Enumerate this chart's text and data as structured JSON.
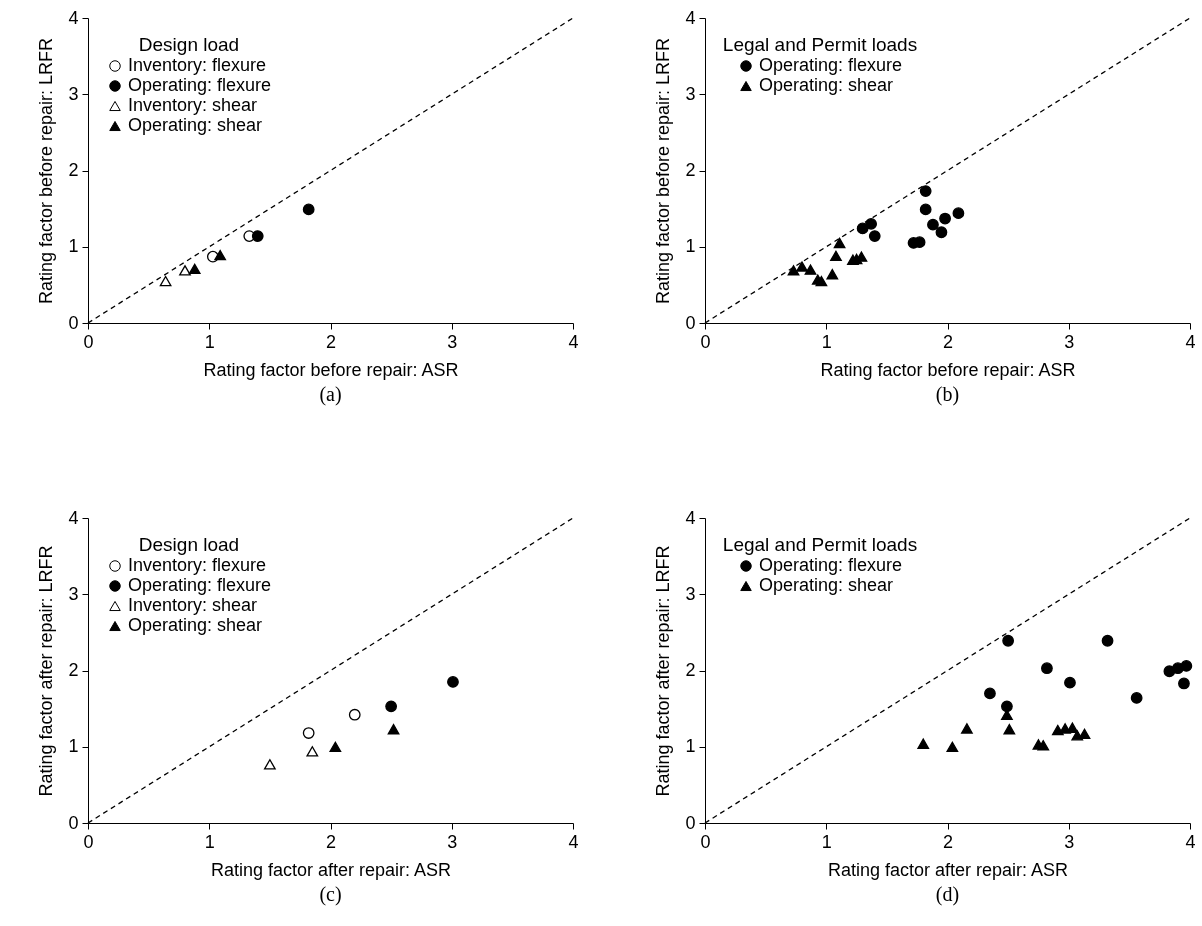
{
  "chart_data": [
    {
      "type": "scatter",
      "xlabel": "Rating factor before repair: ASR",
      "ylabel": "Rating factor before repair: LRFR",
      "legend_title": "Design load",
      "legend": "top left",
      "grid": false,
      "xlim": [
        0,
        4
      ],
      "ylim": [
        0,
        4
      ],
      "xticks": [
        0,
        1,
        2,
        3,
        4
      ],
      "yticks": [
        0,
        1,
        2,
        3,
        4
      ],
      "annotations": [
        "(a)"
      ],
      "series": [
        {
          "type": "line",
          "color": "#000000",
          "line_style": "dashed",
          "marker": "none",
          "x": [
            0,
            4
          ],
          "values": [
            0,
            4
          ]
        },
        {
          "name": "Inventory: flexure",
          "marker": "circle",
          "color": "#ffffff",
          "x": [
            1.03,
            1.33
          ],
          "values": [
            0.87,
            1.14
          ]
        },
        {
          "name": "Operating: flexure",
          "marker": "circle",
          "color": "#000000",
          "x": [
            1.4,
            1.82
          ],
          "values": [
            1.14,
            1.49
          ]
        },
        {
          "name": "Inventory: shear",
          "marker": "triangle",
          "color": "#ffffff",
          "x": [
            0.64,
            0.8
          ],
          "values": [
            0.55,
            0.69
          ]
        },
        {
          "name": "Operating: shear",
          "marker": "triangle",
          "color": "#000000",
          "x": [
            0.88,
            1.09
          ],
          "values": [
            0.71,
            0.89
          ]
        }
      ]
    },
    {
      "type": "scatter",
      "xlabel": "Rating factor before repair: ASR",
      "ylabel": "Rating factor before repair: LRFR",
      "legend_title": "Legal and Permit loads",
      "legend": "top left",
      "grid": false,
      "xlim": [
        0,
        4
      ],
      "ylim": [
        0,
        4
      ],
      "xticks": [
        0,
        1,
        2,
        3,
        4
      ],
      "yticks": [
        0,
        1,
        2,
        3,
        4
      ],
      "annotations": [
        "(b)"
      ],
      "series": [
        {
          "type": "line",
          "color": "#000000",
          "line_style": "dashed",
          "marker": "none",
          "x": [
            0,
            4
          ],
          "values": [
            0,
            4
          ]
        },
        {
          "name": "Operating: flexure",
          "marker": "circle",
          "color": "#000000",
          "x": [
            1.3,
            1.37,
            1.4,
            1.72,
            1.77,
            1.82,
            1.82,
            1.88,
            1.95,
            1.98,
            2.09
          ],
          "values": [
            1.24,
            1.3,
            1.14,
            1.05,
            1.06,
            1.73,
            1.49,
            1.29,
            1.19,
            1.37,
            1.44
          ]
        },
        {
          "name": "Operating: shear",
          "marker": "triangle",
          "color": "#000000",
          "x": [
            0.73,
            0.8,
            0.87,
            0.93,
            0.96,
            1.05,
            1.08,
            1.11,
            1.22,
            1.25,
            1.29
          ],
          "values": [
            0.69,
            0.74,
            0.7,
            0.57,
            0.55,
            0.64,
            0.88,
            1.05,
            0.83,
            0.84,
            0.87
          ]
        }
      ]
    },
    {
      "type": "scatter",
      "xlabel": "Rating factor after repair: ASR",
      "ylabel": "Rating factor after repair: LRFR",
      "legend_title": "Design load",
      "legend": "top left",
      "grid": false,
      "xlim": [
        0,
        4
      ],
      "ylim": [
        0,
        4
      ],
      "xticks": [
        0,
        1,
        2,
        3,
        4
      ],
      "yticks": [
        0,
        1,
        2,
        3,
        4
      ],
      "annotations": [
        "(c)"
      ],
      "series": [
        {
          "type": "line",
          "color": "#000000",
          "line_style": "dashed",
          "marker": "none",
          "x": [
            0,
            4
          ],
          "values": [
            0,
            4
          ]
        },
        {
          "name": "Inventory: flexure",
          "marker": "circle",
          "color": "#ffffff",
          "x": [
            1.82,
            2.2
          ],
          "values": [
            1.18,
            1.42
          ]
        },
        {
          "name": "Operating: flexure",
          "marker": "circle",
          "color": "#000000",
          "x": [
            2.5,
            3.01
          ],
          "values": [
            1.53,
            1.85
          ]
        },
        {
          "name": "Inventory: shear",
          "marker": "triangle",
          "color": "#ffffff",
          "x": [
            1.5,
            1.85
          ],
          "values": [
            0.77,
            0.94
          ]
        },
        {
          "name": "Operating: shear",
          "marker": "triangle",
          "color": "#000000",
          "x": [
            2.04,
            2.52
          ],
          "values": [
            1.0,
            1.23
          ]
        }
      ]
    },
    {
      "type": "scatter",
      "xlabel": "Rating factor after repair: ASR",
      "ylabel": "Rating factor after repair: LRFR",
      "legend_title": "Legal and Permit loads",
      "legend": "top left",
      "grid": false,
      "xlim": [
        0,
        4
      ],
      "ylim": [
        0,
        4
      ],
      "xticks": [
        0,
        1,
        2,
        3,
        4
      ],
      "yticks": [
        0,
        1,
        2,
        3,
        4
      ],
      "annotations": [
        "(d)"
      ],
      "series": [
        {
          "type": "line",
          "color": "#000000",
          "line_style": "dashed",
          "marker": "none",
          "x": [
            0,
            4
          ],
          "values": [
            0,
            4
          ]
        },
        {
          "name": "Operating: flexure",
          "marker": "circle",
          "color": "#000000",
          "x": [
            2.5,
            3.32,
            2.82,
            3.01,
            2.35,
            2.49,
            3.56,
            3.83,
            3.9,
            3.97,
            3.95
          ],
          "values": [
            2.39,
            2.39,
            2.03,
            1.84,
            1.7,
            1.53,
            1.64,
            1.99,
            2.03,
            2.06,
            1.83
          ]
        },
        {
          "name": "Operating: shear",
          "marker": "triangle",
          "color": "#000000",
          "x": [
            1.8,
            2.04,
            2.16,
            2.49,
            2.51,
            2.75,
            2.79,
            2.91,
            2.97,
            3.03,
            3.07,
            3.13
          ],
          "values": [
            1.04,
            1.0,
            1.24,
            1.42,
            1.23,
            1.03,
            1.02,
            1.22,
            1.24,
            1.25,
            1.15,
            1.17
          ]
        }
      ]
    }
  ]
}
